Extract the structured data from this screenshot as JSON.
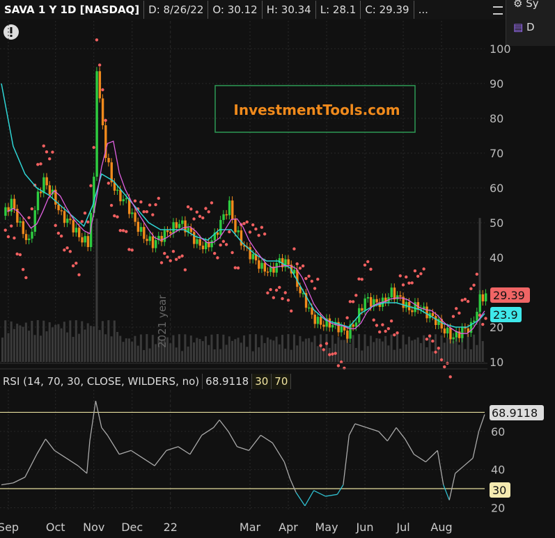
{
  "header": {
    "symbol": "SAVA 1 Y 1D [NASDAQ]",
    "date": "D: 8/26/22",
    "open": "O: 30.12",
    "high": "H: 30.34",
    "low": "L: 28.1",
    "close": "C: 29.39",
    "more": "..."
  },
  "popup": {
    "item1": "Sy",
    "item2": "D"
  },
  "watermark": "InvestmentTools.com",
  "year_marker": "2021 year",
  "price_labels": {
    "last": "29.39",
    "ma": "23.9"
  },
  "rsi": {
    "study": "RSI (14, 70, 30, CLOSE, WILDERS, no)",
    "value": "68.9118",
    "oversold": "30",
    "overbought": "70",
    "level_label": "30"
  },
  "colors": {
    "up": "#2ecc40",
    "down": "#f08a1c",
    "ma_cyan": "#2fd6d6",
    "ma_magenta": "#e060e0",
    "sar": "#f06060",
    "rsi_line": "#aaaaaa",
    "rsi_high": "#e05050",
    "rsi_low": "#30c0d0",
    "level": "#e8e0a0"
  },
  "chart_data": [
    {
      "type": "candlestick",
      "title": "SAVA 1 Y 1D [NASDAQ]",
      "ylim": [
        10,
        100
      ],
      "yticks": [
        10,
        20,
        30,
        40,
        50,
        60,
        70,
        80,
        90,
        100
      ],
      "x_months": [
        "Sep",
        "Oct",
        "Nov",
        "Dec",
        "22",
        "Mar",
        "Apr",
        "May",
        "Jun",
        "Jul",
        "Aug"
      ],
      "series": [
        {
          "values": [
            [
              0,
              52
            ],
            [
              3,
              56
            ],
            [
              6,
              49
            ],
            [
              9,
              44
            ],
            [
              12,
              58
            ],
            [
              14,
              62
            ],
            [
              17,
              58
            ],
            [
              20,
              52
            ],
            [
              23,
              50
            ],
            [
              26,
              46
            ],
            [
              29,
              44
            ],
            [
              31,
              62
            ],
            [
              32,
              95
            ],
            [
              33,
              85
            ],
            [
              35,
              70
            ],
            [
              37,
              62
            ],
            [
              39,
              58
            ],
            [
              42,
              56
            ],
            [
              45,
              50
            ],
            [
              48,
              46
            ],
            [
              51,
              44
            ],
            [
              54,
              46
            ],
            [
              57,
              48
            ],
            [
              60,
              50
            ],
            [
              63,
              48
            ],
            [
              66,
              44
            ],
            [
              69,
              43
            ],
            [
              72,
              46
            ],
            [
              75,
              52
            ],
            [
              77,
              55
            ],
            [
              79,
              48
            ],
            [
              82,
              43
            ],
            [
              85,
              40
            ],
            [
              88,
              37
            ],
            [
              91,
              36
            ],
            [
              94,
              39
            ],
            [
              97,
              38
            ],
            [
              99,
              35
            ],
            [
              101,
              30
            ],
            [
              103,
              27
            ],
            [
              105,
              23
            ],
            [
              108,
              21
            ],
            [
              111,
              21
            ],
            [
              114,
              20
            ],
            [
              117,
              18
            ],
            [
              120,
              22
            ],
            [
              123,
              28
            ],
            [
              126,
              27
            ],
            [
              129,
              27
            ],
            [
              132,
              30
            ],
            [
              135,
              28
            ],
            [
              138,
              25
            ],
            [
              141,
              26
            ],
            [
              144,
              24
            ],
            [
              147,
              22
            ],
            [
              150,
              19
            ],
            [
              153,
              17
            ],
            [
              156,
              19
            ],
            [
              159,
              20
            ],
            [
              161,
              25
            ],
            [
              162,
              28
            ],
            [
              164,
              29.39
            ]
          ]
        },
        {
          "name": "",
          "values": [
            [
              0,
              90
            ],
            [
              4,
              72
            ],
            [
              8,
              64
            ],
            [
              12,
              60
            ],
            [
              16,
              58
            ],
            [
              20,
              55
            ],
            [
              24,
              52
            ],
            [
              28,
              49
            ],
            [
              31,
              55
            ],
            [
              34,
              64
            ],
            [
              38,
              62
            ],
            [
              42,
              58
            ],
            [
              46,
              54
            ],
            [
              50,
              50
            ],
            [
              54,
              48
            ],
            [
              58,
              48
            ],
            [
              62,
              48
            ],
            [
              66,
              46
            ],
            [
              70,
              45
            ],
            [
              74,
              48
            ],
            [
              78,
              48
            ],
            [
              82,
              44
            ],
            [
              86,
              41
            ],
            [
              90,
              39
            ],
            [
              94,
              39
            ],
            [
              98,
              37
            ],
            [
              102,
              31
            ],
            [
              106,
              25
            ],
            [
              110,
              22
            ],
            [
              114,
              21
            ],
            [
              118,
              20
            ],
            [
              122,
              24
            ],
            [
              126,
              26
            ],
            [
              130,
              27
            ],
            [
              134,
              27
            ],
            [
              138,
              26
            ],
            [
              142,
              25
            ],
            [
              146,
              23
            ],
            [
              150,
              21
            ],
            [
              154,
              20
            ],
            [
              158,
              20
            ],
            [
              162,
              22
            ],
            [
              164,
              23.9
            ]
          ]
        }
      ]
    },
    {
      "type": "line",
      "title": "RSI (14, 70, 30, CLOSE, WILDERS, no)",
      "ylim": [
        18,
        80
      ],
      "yticks": [
        20,
        40,
        60
      ],
      "levels": [
        30,
        70
      ],
      "series": [
        {
          "values": [
            [
              0,
              32
            ],
            [
              4,
              33
            ],
            [
              8,
              36
            ],
            [
              12,
              48
            ],
            [
              15,
              56
            ],
            [
              18,
              50
            ],
            [
              22,
              46
            ],
            [
              26,
              42
            ],
            [
              29,
              38
            ],
            [
              30,
              55
            ],
            [
              32,
              76
            ],
            [
              34,
              62
            ],
            [
              36,
              58
            ],
            [
              40,
              48
            ],
            [
              44,
              50
            ],
            [
              48,
              46
            ],
            [
              52,
              42
            ],
            [
              56,
              50
            ],
            [
              60,
              52
            ],
            [
              64,
              48
            ],
            [
              68,
              58
            ],
            [
              72,
              62
            ],
            [
              74,
              66
            ],
            [
              77,
              60
            ],
            [
              80,
              52
            ],
            [
              84,
              50
            ],
            [
              88,
              58
            ],
            [
              92,
              54
            ],
            [
              96,
              44
            ],
            [
              98,
              35
            ],
            [
              100,
              28
            ],
            [
              103,
              21
            ],
            [
              106,
              29
            ],
            [
              110,
              26
            ],
            [
              114,
              27
            ],
            [
              116,
              32
            ],
            [
              118,
              58
            ],
            [
              120,
              64
            ],
            [
              124,
              62
            ],
            [
              128,
              60
            ],
            [
              131,
              55
            ],
            [
              134,
              62
            ],
            [
              137,
              56
            ],
            [
              140,
              48
            ],
            [
              144,
              44
            ],
            [
              148,
              50
            ],
            [
              150,
              32
            ],
            [
              152,
              24
            ],
            [
              154,
              38
            ],
            [
              157,
              42
            ],
            [
              160,
              46
            ],
            [
              162,
              60
            ],
            [
              164,
              68.9
            ]
          ]
        }
      ]
    }
  ]
}
